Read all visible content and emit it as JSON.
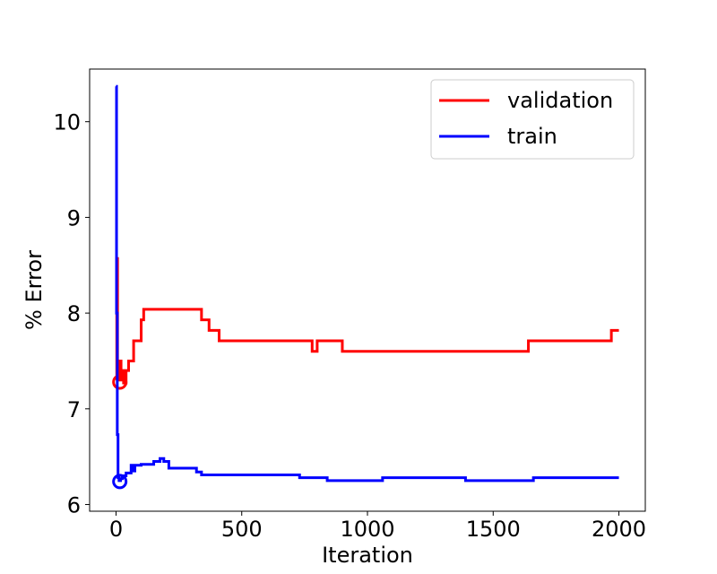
{
  "chart_data": {
    "type": "line",
    "title": "",
    "xlabel": "Iteration",
    "ylabel": "% Error",
    "xlim": [
      -105,
      2105
    ],
    "ylim": [
      5.93,
      10.55
    ],
    "xticks": [
      0,
      500,
      1000,
      1500,
      2000
    ],
    "xtick_labels": [
      "0",
      "500",
      "1000",
      "1500",
      "2000"
    ],
    "yticks": [
      6,
      7,
      8,
      9,
      10
    ],
    "ytick_labels": [
      "6",
      "7",
      "8",
      "9",
      "10"
    ],
    "grid": false,
    "legend_position": "top-right",
    "series": [
      {
        "name": "validation",
        "color": "#ff0000",
        "step": true,
        "x": [
          0,
          3,
          6,
          10,
          16,
          20,
          26,
          30,
          40,
          50,
          60,
          70,
          80,
          100,
          110,
          120,
          340,
          370,
          410,
          780,
          800,
          900,
          1640,
          1970,
          2000
        ],
        "y": [
          7.3,
          8.57,
          7.3,
          7.4,
          7.5,
          7.3,
          7.4,
          7.27,
          7.4,
          7.5,
          7.5,
          7.71,
          7.71,
          7.93,
          8.04,
          8.04,
          7.93,
          7.82,
          7.71,
          7.6,
          7.71,
          7.6,
          7.71,
          7.82,
          7.82
        ],
        "marker": {
          "x": 15,
          "y": 7.28
        }
      },
      {
        "name": "train",
        "color": "#0000ff",
        "step": true,
        "x": [
          0,
          2,
          5,
          8,
          12,
          18,
          25,
          40,
          60,
          70,
          75,
          85,
          100,
          150,
          175,
          190,
          210,
          320,
          340,
          730,
          840,
          1060,
          1390,
          1660,
          2000
        ],
        "y": [
          10.37,
          8.0,
          6.73,
          6.28,
          6.25,
          6.27,
          6.3,
          6.33,
          6.41,
          6.35,
          6.41,
          6.41,
          6.42,
          6.45,
          6.48,
          6.45,
          6.38,
          6.34,
          6.31,
          6.28,
          6.25,
          6.28,
          6.25,
          6.28,
          6.28
        ],
        "marker": {
          "x": 15,
          "y": 6.24
        }
      }
    ]
  }
}
